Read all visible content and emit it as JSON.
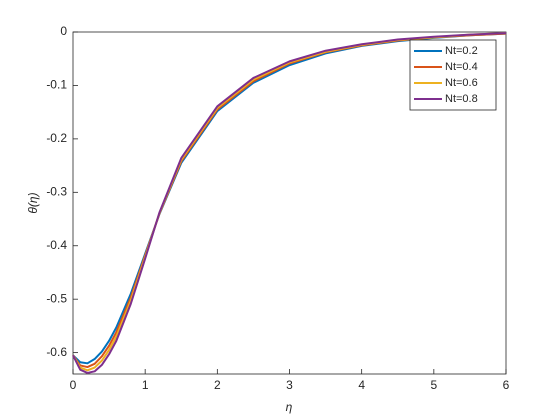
{
  "chart_data": {
    "type": "line",
    "x_label": "η",
    "y_label": "θ(η)",
    "x": [
      0,
      0.1,
      0.2,
      0.3,
      0.4,
      0.5,
      0.6,
      0.8,
      1.0,
      1.2,
      1.5,
      2,
      2.5,
      3,
      3.5,
      4,
      4.5,
      5,
      5.5,
      6
    ],
    "series": [
      {
        "name": "Nt=0.2",
        "color": "#0072BD",
        "values": [
          -0.605,
          -0.618,
          -0.62,
          -0.612,
          -0.598,
          -0.578,
          -0.553,
          -0.49,
          -0.415,
          -0.34,
          -0.245,
          -0.148,
          -0.095,
          -0.062,
          -0.04,
          -0.026,
          -0.017,
          -0.011,
          -0.006,
          -0.003
        ]
      },
      {
        "name": "Nt=0.4",
        "color": "#D95319",
        "values": [
          -0.605,
          -0.624,
          -0.627,
          -0.621,
          -0.607,
          -0.587,
          -0.562,
          -0.497,
          -0.418,
          -0.339,
          -0.242,
          -0.145,
          -0.092,
          -0.059,
          -0.038,
          -0.025,
          -0.016,
          -0.01,
          -0.006,
          -0.003
        ]
      },
      {
        "name": "Nt=0.6",
        "color": "#EDB120",
        "values": [
          -0.605,
          -0.628,
          -0.633,
          -0.628,
          -0.615,
          -0.595,
          -0.57,
          -0.503,
          -0.421,
          -0.338,
          -0.239,
          -0.142,
          -0.089,
          -0.057,
          -0.037,
          -0.024,
          -0.015,
          -0.01,
          -0.005,
          -0.002
        ]
      },
      {
        "name": "Nt=0.8",
        "color": "#7E2F8E",
        "values": [
          -0.605,
          -0.632,
          -0.638,
          -0.635,
          -0.623,
          -0.603,
          -0.578,
          -0.509,
          -0.424,
          -0.337,
          -0.236,
          -0.139,
          -0.086,
          -0.055,
          -0.035,
          -0.023,
          -0.014,
          -0.009,
          -0.005,
          -0.002
        ]
      }
    ],
    "xlim": [
      0,
      6
    ],
    "xticks": [
      0,
      1,
      2,
      3,
      4,
      5,
      6
    ],
    "ylim": [
      -0.64,
      0
    ],
    "yticks": [
      -0.6,
      -0.5,
      -0.4,
      -0.3,
      -0.2,
      -0.1,
      0
    ],
    "legend": "upper right"
  }
}
